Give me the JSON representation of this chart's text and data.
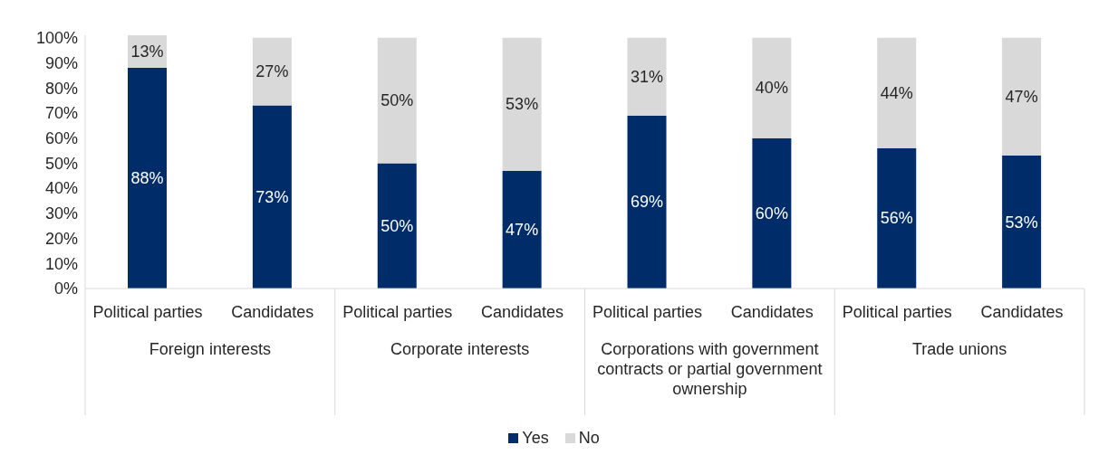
{
  "chart_data": {
    "type": "bar",
    "stacked": true,
    "categories": [
      "Political parties",
      "Candidates",
      "Political parties",
      "Candidates",
      "Political parties",
      "Candidates",
      "Political parties",
      "Candidates"
    ],
    "annotations": [
      "Foreign interests",
      "Corporate interests",
      "Corporations with government contracts or partial government ownership",
      "Trade unions"
    ],
    "series": [
      {
        "name": "Yes",
        "color": "#002d6a",
        "values": [
          88,
          73,
          50,
          47,
          69,
          60,
          56,
          53
        ],
        "value_labels": [
          "88%",
          "73%",
          "50%",
          "47%",
          "69%",
          "60%",
          "56%",
          "53%"
        ]
      },
      {
        "name": "No",
        "color": "#d9d9d9",
        "values": [
          13,
          27,
          50,
          53,
          31,
          40,
          44,
          47
        ],
        "value_labels": [
          "13%",
          "27%",
          "50%",
          "53%",
          "31%",
          "40%",
          "44%",
          "47%"
        ]
      }
    ],
    "ylim": [
      0,
      101
    ],
    "yticks": [
      {
        "value": 0,
        "label": "0%"
      },
      {
        "value": 10,
        "label": "10%"
      },
      {
        "value": 20,
        "label": "20%"
      },
      {
        "value": 30,
        "label": "30%"
      },
      {
        "value": 40,
        "label": "40%"
      },
      {
        "value": 50,
        "label": "50%"
      },
      {
        "value": 60,
        "label": "60%"
      },
      {
        "value": 70,
        "label": "70%"
      },
      {
        "value": 80,
        "label": "80%"
      },
      {
        "value": 90,
        "label": "90%"
      },
      {
        "value": 100,
        "label": "100%"
      }
    ],
    "grid": false,
    "legend": "bottom"
  }
}
